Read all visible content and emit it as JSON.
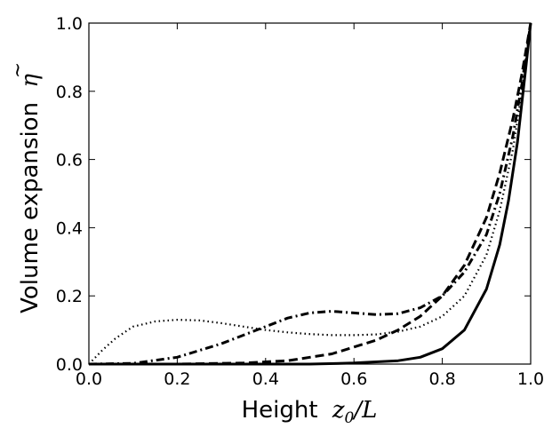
{
  "chart_data": {
    "type": "line",
    "xlabel": "Height",
    "xlabel_math": "z",
    "xlabel_sub": "0",
    "xlabel_tail": "/L",
    "ylabel": "Volume expansion",
    "ylabel_math": "η",
    "ylabel_accent": "~",
    "xlim": [
      0.0,
      1.0
    ],
    "ylim": [
      0.0,
      1.0
    ],
    "xticks": [
      "0.0",
      "0.2",
      "0.4",
      "0.6",
      "0.8",
      "1.0"
    ],
    "yticks": [
      "0.0",
      "0.2",
      "0.4",
      "0.6",
      "0.8",
      "1.0"
    ],
    "grid": false,
    "legend": "none",
    "series": [
      {
        "style": "solid",
        "color": "#000000",
        "x": [
          0.0,
          0.3,
          0.5,
          0.6,
          0.7,
          0.75,
          0.8,
          0.85,
          0.9,
          0.93,
          0.95,
          0.97,
          0.99,
          1.0
        ],
        "y": [
          0.0,
          0.0,
          0.0,
          0.003,
          0.01,
          0.02,
          0.045,
          0.1,
          0.22,
          0.35,
          0.48,
          0.65,
          0.88,
          1.0
        ]
      },
      {
        "style": "dashed",
        "color": "#000000",
        "x": [
          0.0,
          0.2,
          0.35,
          0.45,
          0.55,
          0.65,
          0.7,
          0.75,
          0.8,
          0.85,
          0.9,
          0.93,
          0.96,
          0.98,
          1.0
        ],
        "y": [
          0.0,
          0.0,
          0.003,
          0.01,
          0.03,
          0.07,
          0.1,
          0.14,
          0.2,
          0.29,
          0.43,
          0.56,
          0.72,
          0.85,
          1.0
        ]
      },
      {
        "style": "dashdot",
        "color": "#000000",
        "x": [
          0.0,
          0.1,
          0.2,
          0.3,
          0.4,
          0.45,
          0.5,
          0.55,
          0.6,
          0.65,
          0.7,
          0.75,
          0.8,
          0.85,
          0.9,
          0.93,
          0.96,
          0.98,
          1.0
        ],
        "y": [
          0.0,
          0.002,
          0.02,
          0.06,
          0.11,
          0.135,
          0.15,
          0.155,
          0.15,
          0.145,
          0.148,
          0.165,
          0.2,
          0.27,
          0.38,
          0.5,
          0.67,
          0.82,
          1.0
        ]
      },
      {
        "style": "dotted",
        "color": "#000000",
        "x": [
          0.0,
          0.03,
          0.06,
          0.1,
          0.15,
          0.2,
          0.25,
          0.3,
          0.35,
          0.4,
          0.45,
          0.5,
          0.55,
          0.6,
          0.65,
          0.7,
          0.75,
          0.8,
          0.85,
          0.9,
          0.93,
          0.96,
          0.98,
          1.0
        ],
        "y": [
          0.0,
          0.04,
          0.075,
          0.11,
          0.125,
          0.13,
          0.128,
          0.12,
          0.11,
          0.1,
          0.093,
          0.088,
          0.085,
          0.085,
          0.087,
          0.095,
          0.11,
          0.14,
          0.2,
          0.32,
          0.45,
          0.63,
          0.8,
          1.0
        ]
      }
    ]
  }
}
